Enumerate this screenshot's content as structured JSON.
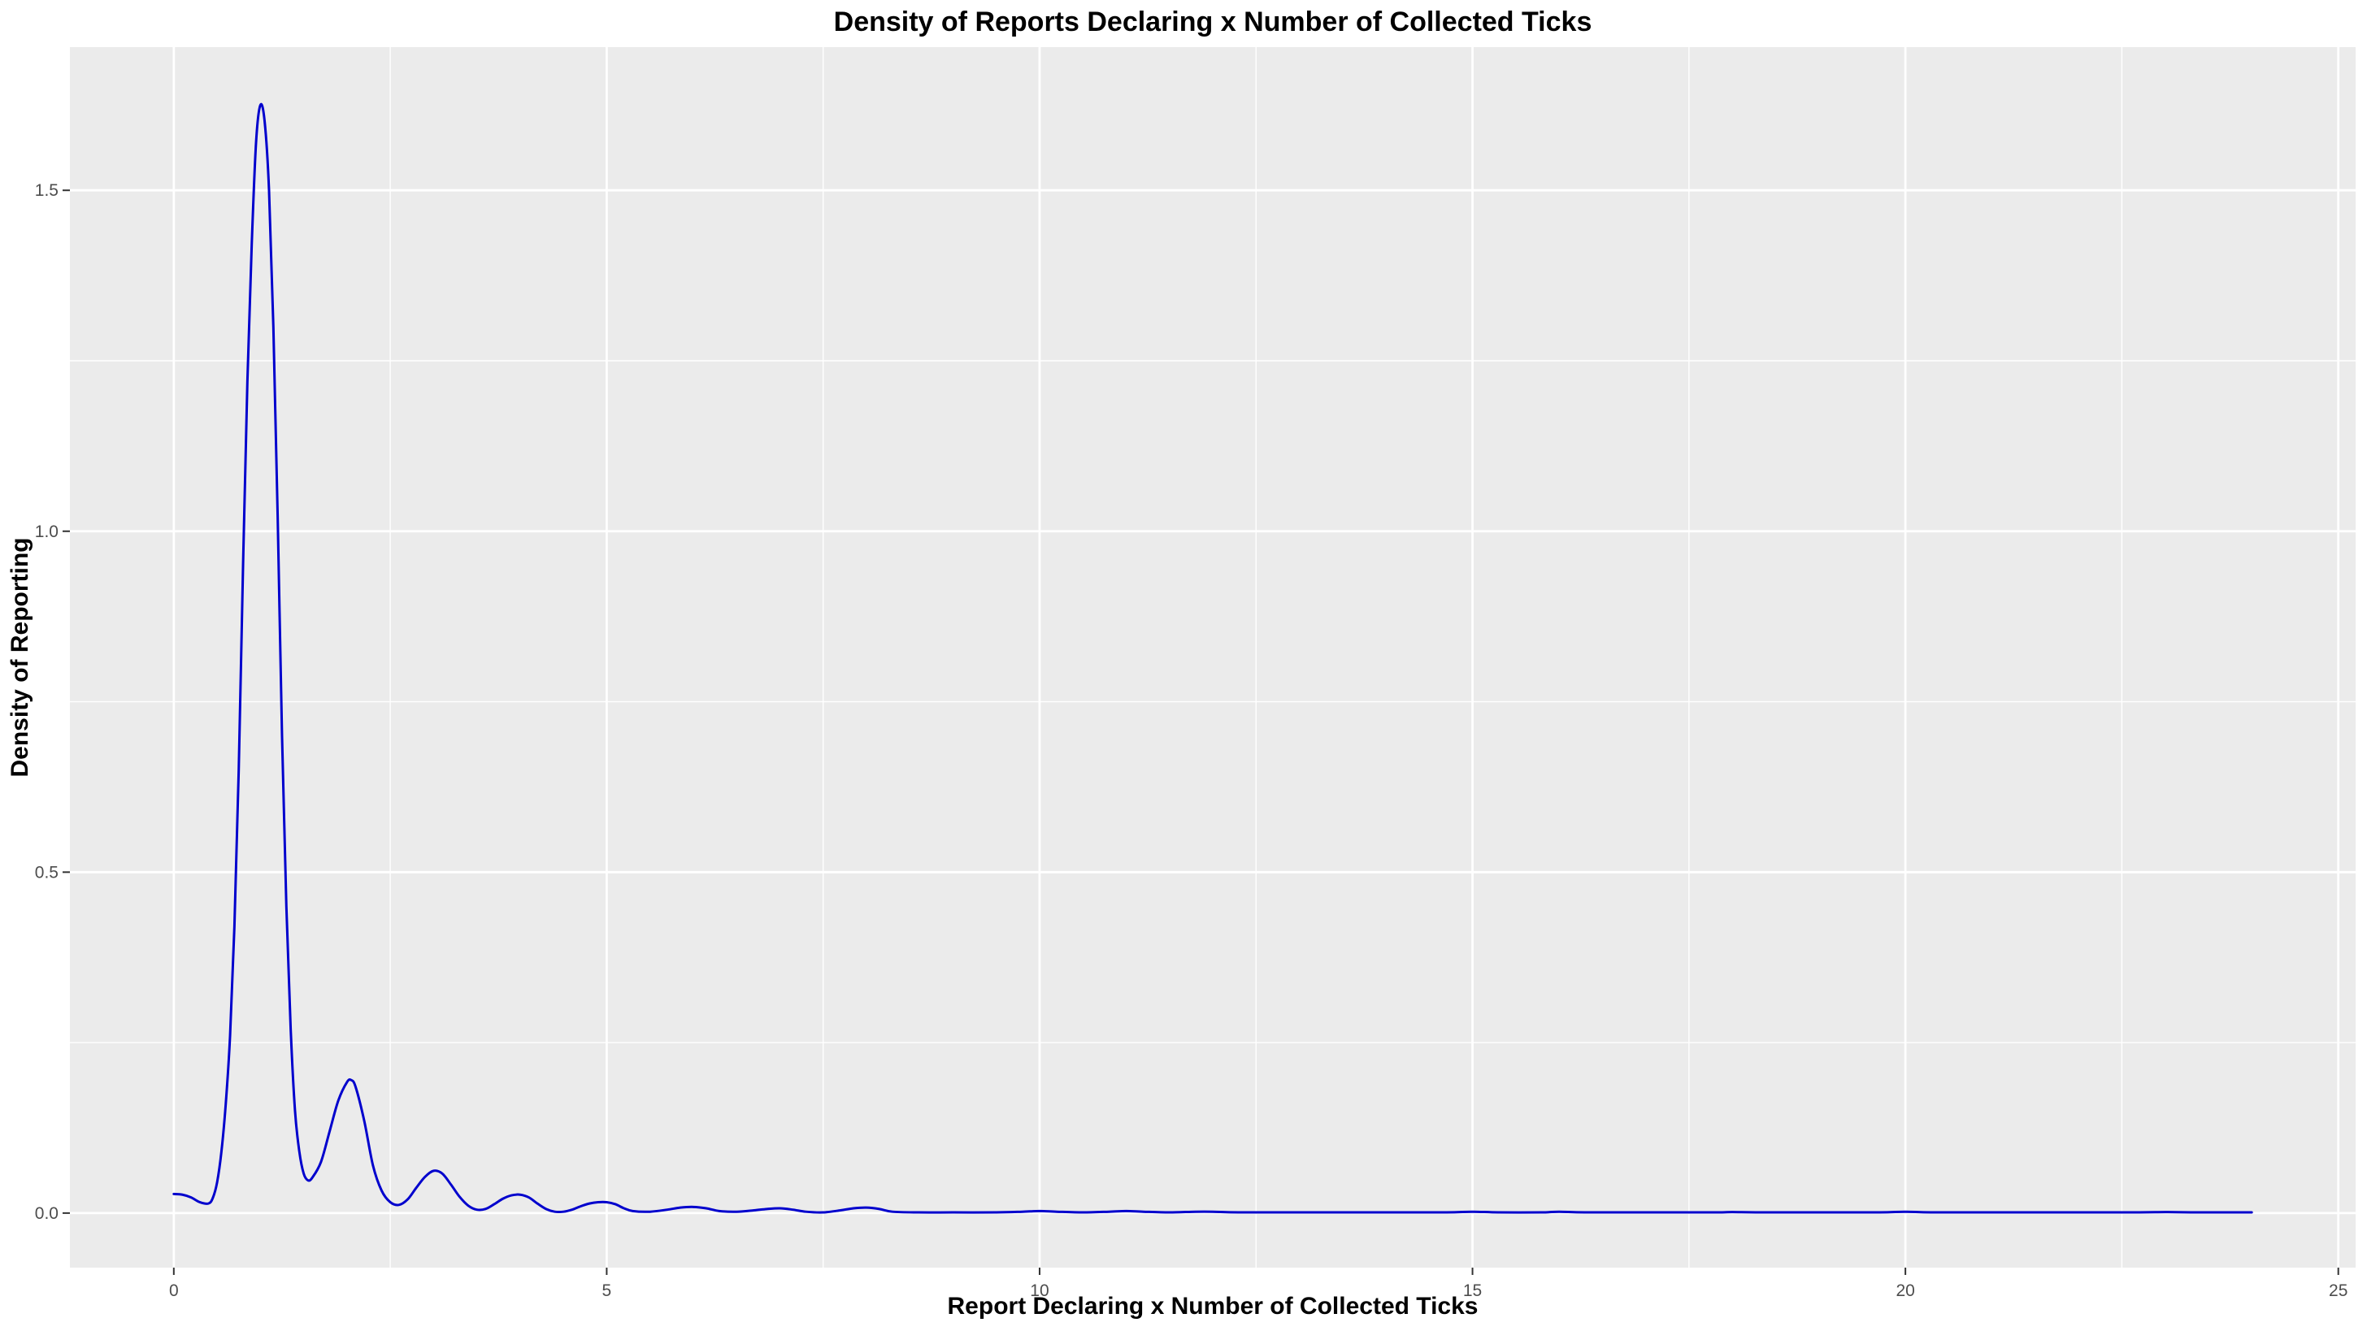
{
  "chart_data": {
    "type": "line",
    "title": "Density of Reports Declaring x Number of Collected Ticks",
    "xlabel": "Report Declaring x Number of Collected Ticks",
    "ylabel": "Density of Reporting",
    "xlim": [
      -1.2,
      25.2
    ],
    "ylim": [
      -0.08,
      1.71
    ],
    "x_ticks": [
      0,
      5,
      10,
      15,
      20,
      25
    ],
    "x_tick_labels": [
      "0",
      "5",
      "10",
      "15",
      "20",
      "25"
    ],
    "y_ticks": [
      0.0,
      0.5,
      1.0,
      1.5
    ],
    "y_tick_labels": [
      "0.0",
      "0.5",
      "1.0",
      "1.5"
    ],
    "x_minor_ticks": [
      2.5,
      7.5,
      12.5,
      17.5,
      22.5
    ],
    "y_minor_ticks": [
      0.25,
      0.75,
      1.25
    ],
    "grid": true,
    "legend": "none",
    "colors": {
      "line": "#0000cd",
      "panel_background": "#ebebeb",
      "grid": "#ffffff",
      "tick_text": "#4d4d4d",
      "tick_mark": "#333333"
    },
    "series": [
      {
        "values": [
          [
            0.0,
            0.028
          ],
          [
            0.1,
            0.027
          ],
          [
            0.2,
            0.023
          ],
          [
            0.3,
            0.016
          ],
          [
            0.4,
            0.014
          ],
          [
            0.45,
            0.022
          ],
          [
            0.5,
            0.045
          ],
          [
            0.55,
            0.09
          ],
          [
            0.6,
            0.16
          ],
          [
            0.65,
            0.26
          ],
          [
            0.7,
            0.42
          ],
          [
            0.75,
            0.65
          ],
          [
            0.8,
            0.95
          ],
          [
            0.85,
            1.22
          ],
          [
            0.9,
            1.42
          ],
          [
            0.95,
            1.57
          ],
          [
            1.0,
            1.625
          ],
          [
            1.05,
            1.6
          ],
          [
            1.1,
            1.5
          ],
          [
            1.15,
            1.3
          ],
          [
            1.2,
            1.02
          ],
          [
            1.25,
            0.7
          ],
          [
            1.3,
            0.45
          ],
          [
            1.35,
            0.27
          ],
          [
            1.4,
            0.15
          ],
          [
            1.45,
            0.09
          ],
          [
            1.5,
            0.058
          ],
          [
            1.55,
            0.048
          ],
          [
            1.6,
            0.052
          ],
          [
            1.7,
            0.075
          ],
          [
            1.8,
            0.12
          ],
          [
            1.9,
            0.165
          ],
          [
            2.0,
            0.192
          ],
          [
            2.05,
            0.195
          ],
          [
            2.1,
            0.185
          ],
          [
            2.2,
            0.135
          ],
          [
            2.3,
            0.07
          ],
          [
            2.4,
            0.033
          ],
          [
            2.5,
            0.016
          ],
          [
            2.6,
            0.012
          ],
          [
            2.7,
            0.02
          ],
          [
            2.8,
            0.037
          ],
          [
            2.9,
            0.053
          ],
          [
            3.0,
            0.062
          ],
          [
            3.1,
            0.058
          ],
          [
            3.2,
            0.042
          ],
          [
            3.3,
            0.024
          ],
          [
            3.4,
            0.011
          ],
          [
            3.5,
            0.005
          ],
          [
            3.6,
            0.006
          ],
          [
            3.7,
            0.013
          ],
          [
            3.8,
            0.021
          ],
          [
            3.9,
            0.026
          ],
          [
            4.0,
            0.027
          ],
          [
            4.1,
            0.023
          ],
          [
            4.2,
            0.014
          ],
          [
            4.3,
            0.006
          ],
          [
            4.4,
            0.002
          ],
          [
            4.5,
            0.002
          ],
          [
            4.6,
            0.005
          ],
          [
            4.7,
            0.01
          ],
          [
            4.8,
            0.014
          ],
          [
            4.9,
            0.016
          ],
          [
            5.0,
            0.016
          ],
          [
            5.1,
            0.013
          ],
          [
            5.2,
            0.007
          ],
          [
            5.3,
            0.003
          ],
          [
            5.5,
            0.002
          ],
          [
            5.7,
            0.005
          ],
          [
            5.85,
            0.008
          ],
          [
            6.0,
            0.009
          ],
          [
            6.15,
            0.007
          ],
          [
            6.3,
            0.003
          ],
          [
            6.5,
            0.002
          ],
          [
            6.7,
            0.004
          ],
          [
            6.85,
            0.006
          ],
          [
            7.0,
            0.007
          ],
          [
            7.15,
            0.005
          ],
          [
            7.3,
            0.002
          ],
          [
            7.5,
            0.001
          ],
          [
            7.7,
            0.004
          ],
          [
            7.85,
            0.007
          ],
          [
            8.0,
            0.008
          ],
          [
            8.15,
            0.006
          ],
          [
            8.3,
            0.002
          ],
          [
            8.6,
            0.001
          ],
          [
            9.0,
            0.001
          ],
          [
            9.5,
            0.001
          ],
          [
            9.8,
            0.002
          ],
          [
            10.0,
            0.003
          ],
          [
            10.2,
            0.002
          ],
          [
            10.5,
            0.001
          ],
          [
            10.8,
            0.002
          ],
          [
            11.0,
            0.003
          ],
          [
            11.2,
            0.002
          ],
          [
            11.5,
            0.001
          ],
          [
            11.8,
            0.002
          ],
          [
            12.0,
            0.002
          ],
          [
            12.3,
            0.001
          ],
          [
            13.0,
            0.001
          ],
          [
            14.0,
            0.001
          ],
          [
            14.7,
            0.001
          ],
          [
            15.0,
            0.002
          ],
          [
            15.3,
            0.001
          ],
          [
            15.8,
            0.001
          ],
          [
            16.0,
            0.002
          ],
          [
            16.3,
            0.001
          ],
          [
            17.0,
            0.001
          ],
          [
            17.8,
            0.001
          ],
          [
            18.0,
            0.0015
          ],
          [
            18.3,
            0.001
          ],
          [
            19.0,
            0.001
          ],
          [
            19.7,
            0.001
          ],
          [
            20.0,
            0.002
          ],
          [
            20.3,
            0.001
          ],
          [
            21.0,
            0.001
          ],
          [
            22.0,
            0.001
          ],
          [
            22.7,
            0.001
          ],
          [
            23.0,
            0.0015
          ],
          [
            23.3,
            0.001
          ],
          [
            24.0,
            0.001
          ]
        ]
      }
    ]
  }
}
